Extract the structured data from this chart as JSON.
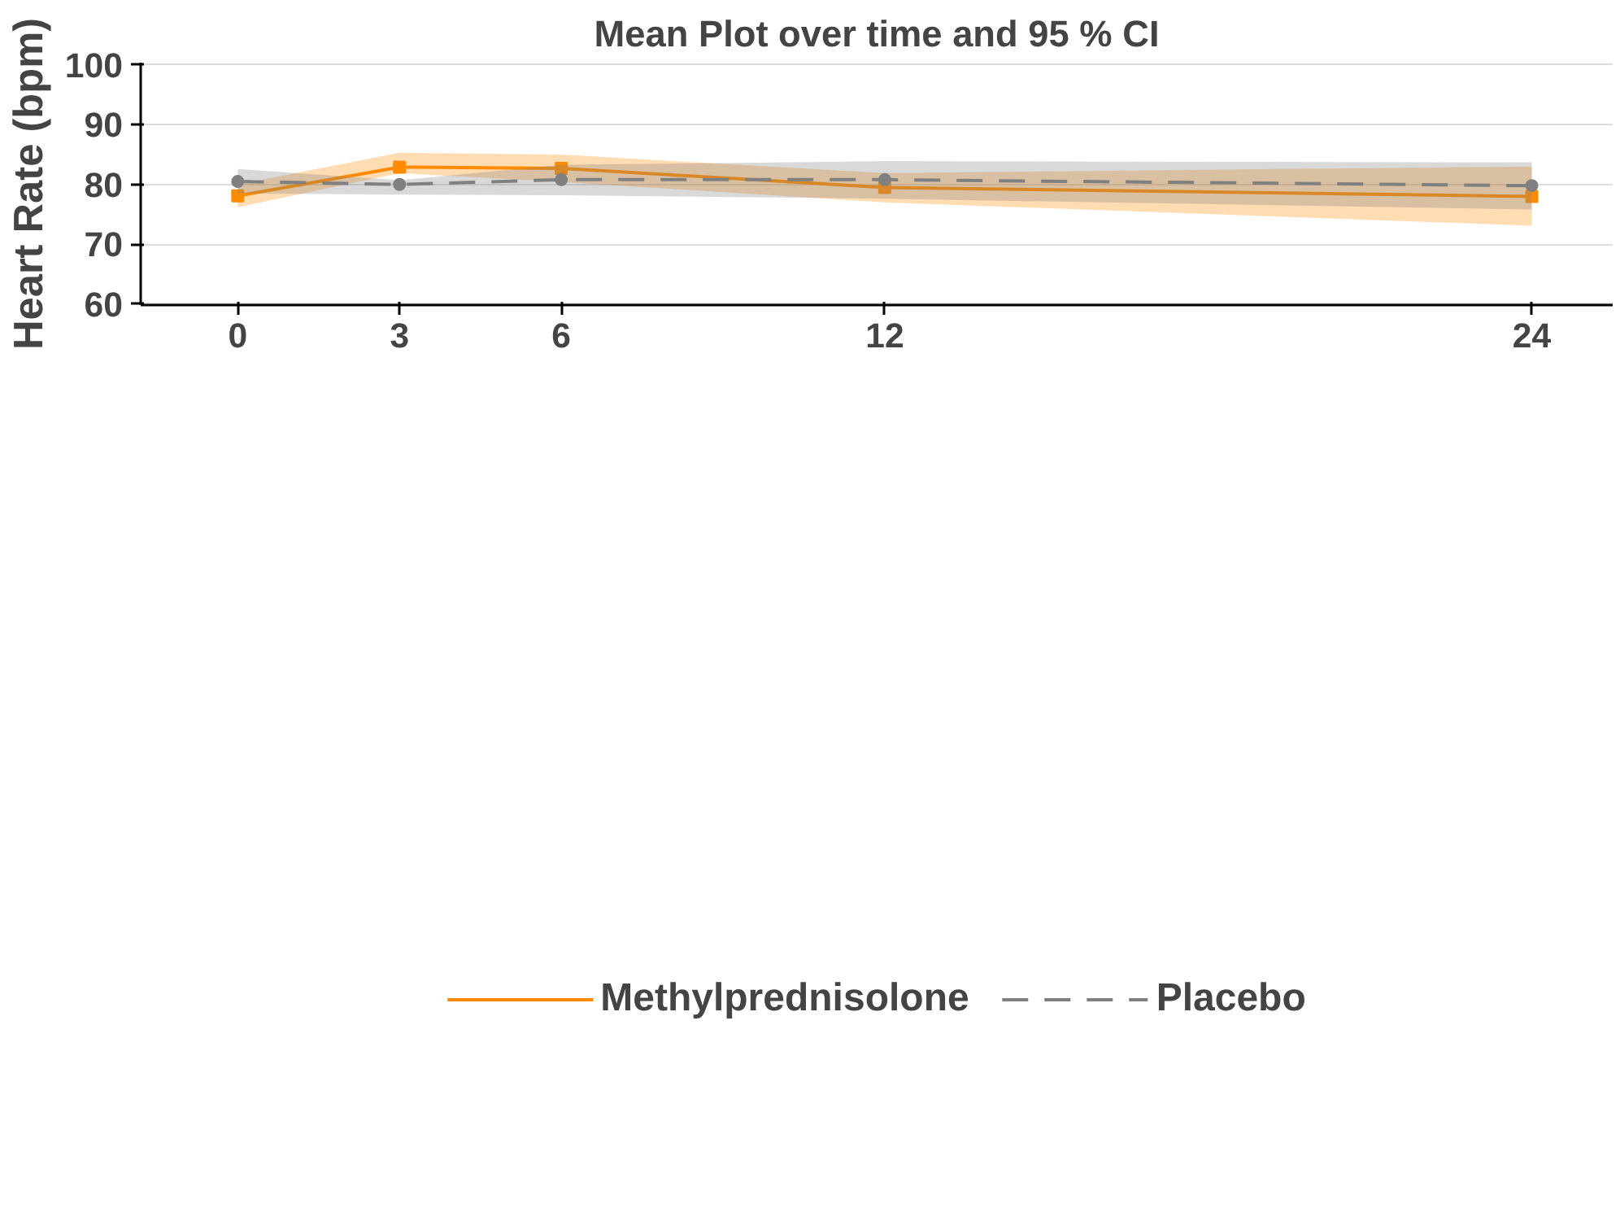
{
  "chart_data": {
    "type": "line",
    "title": "Mean Plot over time and 95 % CI",
    "ylabel": "Heart Rate (bpm)",
    "x": [
      0,
      3,
      6,
      12,
      24
    ],
    "series": [
      {
        "name": "Methylprednisolone",
        "color": "#ff8c00",
        "marker": "square",
        "line_style": "solid",
        "values": [
          78.1,
          82.9,
          82.7,
          79.5,
          78.0
        ],
        "lower": [
          76.2,
          81.9,
          80.4,
          77.0,
          73.1
        ],
        "upper": [
          80.0,
          85.3,
          85.0,
          81.9,
          83.0
        ]
      },
      {
        "name": "Placebo",
        "color": "#808080",
        "marker": "circle",
        "line_style": "dashed",
        "values": [
          80.5,
          80.0,
          80.8,
          80.8,
          79.8
        ],
        "lower": [
          78.5,
          78.3,
          78.2,
          77.6,
          75.8
        ],
        "upper": [
          82.6,
          80.7,
          83.3,
          83.9,
          83.7
        ]
      }
    ],
    "xlim": [
      -1.8,
      25.5
    ],
    "xticks": [
      0,
      3,
      6,
      12,
      24
    ],
    "ylim": [
      59.8,
      100.4
    ],
    "yticks": [
      60,
      70,
      80,
      90,
      100
    ],
    "grid": "y",
    "legend": "bottom"
  }
}
